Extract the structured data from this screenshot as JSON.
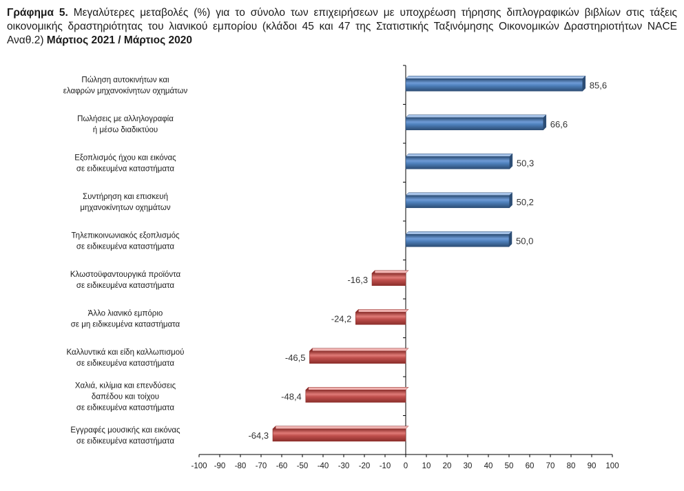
{
  "title": {
    "lead": "Γράφημα 5.",
    "text": "Μεγαλύτερες μεταβολές (%) για το σύνολο των επιχειρήσεων με υποχρέωση τήρησης διπλογραφικών βιβλίων στις τάξεις οικονομικής δραστηριότητας του λιανικού εμπορίου (κλάδοι 45 και 47 της Στατιστικής Ταξινόμησης Οικονομικών Δραστηριοτήτων NACE Αναθ.2)",
    "period": "Μάρτιος 2021 / Μάρτιος 2020"
  },
  "chart_data": {
    "type": "bar",
    "orientation": "horizontal",
    "categories": [
      [
        "Πώληση αυτοκινήτων και",
        "ελαφρών μηχανοκίνητων οχημάτων"
      ],
      [
        "Πωλήσεις με αλληλογραφία",
        "ή μέσω διαδικτύου"
      ],
      [
        "Εξοπλισμός ήχου και εικόνας",
        "σε ειδικευμένα καταστήματα"
      ],
      [
        "Συντήρηση και επισκευή",
        "μηχανοκίνητων οχημάτων"
      ],
      [
        "Τηλεπικοινωνιακός εξοπλισμός",
        "σε ειδικευμένα καταστήματα"
      ],
      [
        "Κλωστοϋφαντουργικά προϊόντα",
        "σε ειδικευμένα καταστήματα"
      ],
      [
        "Άλλο λιανικό εμπόριο",
        "σε μη ειδικευμένα καταστήματα"
      ],
      [
        "Καλλυντικά και είδη καλλωπισμού",
        "σε ειδικευμένα καταστήματα"
      ],
      [
        "Χαλιά, κιλίμια και επενδύσεις",
        "δαπέδου και τοίχου",
        "σε ειδικευμένα καταστήματα"
      ],
      [
        "Εγγραφές μουσικής και εικόνας",
        "σε ειδικευμένα καταστήματα"
      ]
    ],
    "values": [
      85.6,
      66.6,
      50.3,
      50.2,
      50.0,
      -16.3,
      -24.2,
      -46.5,
      -48.4,
      -64.3
    ],
    "value_labels": [
      "85,6",
      "66,6",
      "50,3",
      "50,2",
      "50,0",
      "-16,3",
      "-24,2",
      "-46,5",
      "-48,4",
      "-64,3"
    ],
    "xlim": [
      -100,
      100
    ],
    "xticks": [
      -100,
      -90,
      -80,
      -70,
      -60,
      -50,
      -40,
      -30,
      -20,
      -10,
      0,
      10,
      20,
      30,
      40,
      50,
      60,
      70,
      80,
      90,
      100
    ],
    "grid": false,
    "legend": "none",
    "colors": {
      "positive": "#4f81bd",
      "positive_dark": "#2c4d75",
      "negative": "#c0504d",
      "negative_dark": "#8c2f2c",
      "axis": "#000000"
    }
  }
}
